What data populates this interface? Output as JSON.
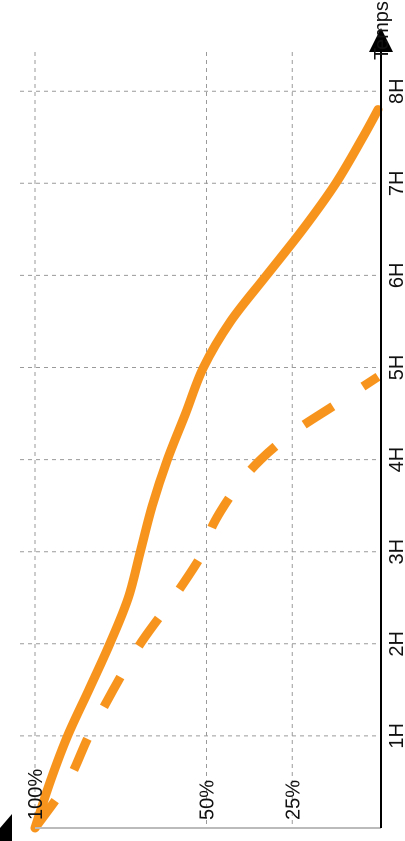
{
  "chart_data": {
    "type": "line",
    "orientation": "rotated",
    "x_axis_label": "Temps",
    "x_ticks": [
      "1H",
      "2H",
      "3H",
      "4H",
      "5H",
      "6H",
      "7H",
      "8H"
    ],
    "y_ticks": [
      "100%",
      "50%",
      "25%"
    ],
    "xlim_hours": [
      0,
      8.3
    ],
    "grid": true,
    "colors": {
      "line": "#f7941d",
      "grid": "#9a9a9a",
      "axis": "#000000"
    },
    "series": [
      {
        "style": "solid",
        "points": [
          {
            "x": 0.0,
            "y": 100
          },
          {
            "x": 0.5,
            "y": 95.6
          },
          {
            "x": 1.0,
            "y": 90.5
          },
          {
            "x": 1.5,
            "y": 84.3
          },
          {
            "x": 2.0,
            "y": 78.2
          },
          {
            "x": 2.5,
            "y": 72.8
          },
          {
            "x": 3.0,
            "y": 69.3
          },
          {
            "x": 3.5,
            "y": 65.8
          },
          {
            "x": 4.0,
            "y": 61.4
          },
          {
            "x": 4.5,
            "y": 56.1
          },
          {
            "x": 5.0,
            "y": 50.9
          },
          {
            "x": 5.5,
            "y": 43.0
          },
          {
            "x": 6.0,
            "y": 32.5
          },
          {
            "x": 6.5,
            "y": 21.9
          },
          {
            "x": 7.0,
            "y": 12.3
          },
          {
            "x": 7.5,
            "y": 4.4
          },
          {
            "x": 7.8,
            "y": 0.0
          }
        ]
      },
      {
        "style": "dashed",
        "points": [
          {
            "x": 0.0,
            "y": 100
          },
          {
            "x": 0.5,
            "y": 90.5
          },
          {
            "x": 1.0,
            "y": 84.3
          },
          {
            "x": 1.5,
            "y": 77.2
          },
          {
            "x": 2.0,
            "y": 69.3
          },
          {
            "x": 2.5,
            "y": 59.6
          },
          {
            "x": 3.0,
            "y": 50.9
          },
          {
            "x": 3.3,
            "y": 48.0
          },
          {
            "x": 3.7,
            "y": 41.2
          },
          {
            "x": 4.0,
            "y": 34.2
          },
          {
            "x": 4.3,
            "y": 24.6
          },
          {
            "x": 4.6,
            "y": 12.3
          },
          {
            "x": 4.9,
            "y": 0.0
          }
        ]
      }
    ]
  }
}
